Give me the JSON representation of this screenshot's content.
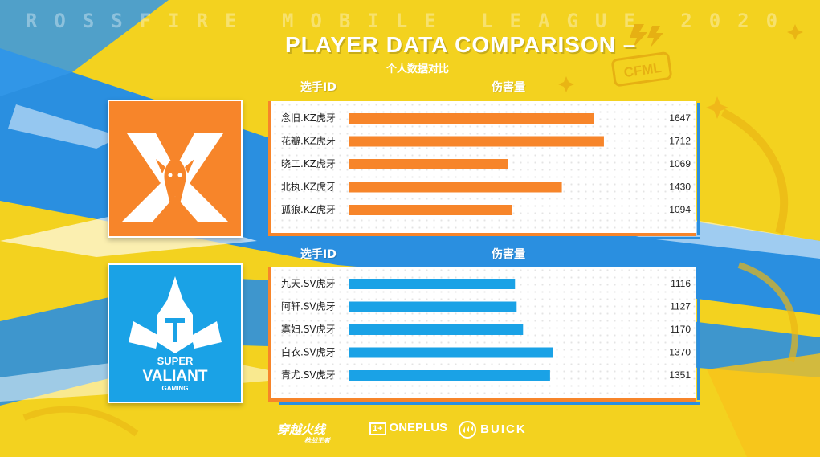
{
  "header": {
    "league_banner": "ROSSFIRE MOBILE LEAGUE 2020",
    "title": "PLAYER DATA COMPARISON –",
    "subtitle": "个人数据对比",
    "badge_text": "CFML"
  },
  "columns": {
    "player_id": "选手ID",
    "damage": "伤害量"
  },
  "colors": {
    "team1_bar": "#f7852a",
    "team1_tile": "#f7852a",
    "team2_bar": "#1aa2e6",
    "team2_tile": "#1aa2e6",
    "accent_blue": "#2a8fe0"
  },
  "teams": [
    {
      "logo_text": "",
      "logo_icon": "kz-dragon-x-logo"
    },
    {
      "logo_text": "SUPER VALIANT GAMING",
      "logo_icon": "knight-helmet-logo",
      "logo_line1": "SUPER",
      "logo_line2": "VALIANT",
      "logo_line3": "GAMING"
    }
  ],
  "chart_data": [
    {
      "type": "bar",
      "orientation": "horizontal",
      "xlabel": "伤害量",
      "ylabel": "选手ID",
      "xlim": [
        0,
        2000
      ],
      "categories": [
        "念旧.KZ虎牙",
        "花瓣.KZ虎牙",
        "晓二.KZ虎牙",
        "北执.KZ虎牙",
        "孤狼.KZ虎牙"
      ],
      "values": [
        1647,
        1712,
        1069,
        1430,
        1094
      ],
      "value_labels": [
        "1647",
        "1712",
        "1069",
        "1430",
        "1094"
      ]
    },
    {
      "type": "bar",
      "orientation": "horizontal",
      "xlabel": "伤害量",
      "ylabel": "选手ID",
      "xlim": [
        0,
        2000
      ],
      "categories": [
        "九天.SV虎牙",
        "阿轩.SV虎牙",
        "寡妇.SV虎牙",
        "白衣.SV虎牙",
        "青尤.SV虎牙"
      ],
      "values": [
        1116,
        1127,
        1170,
        1370,
        1351
      ],
      "value_labels": [
        "1116",
        "1127",
        "1170",
        "1370",
        "1351"
      ]
    }
  ],
  "sponsors": {
    "game_logo": "穿越火线",
    "game_logo_sub": "枪战王者",
    "oneplus_mark": "1+",
    "oneplus": "ONEPLUS",
    "buick": "BUICK"
  }
}
